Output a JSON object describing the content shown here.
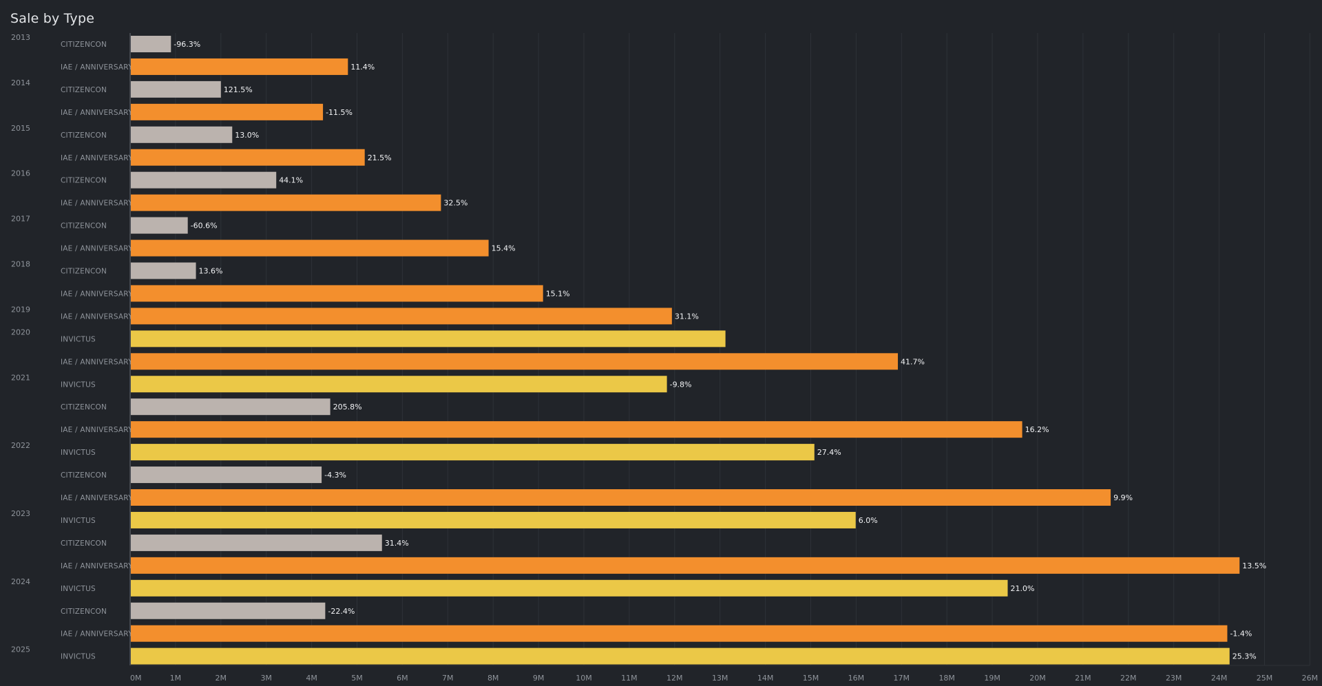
{
  "page": {
    "title": "Sale by Type"
  },
  "colors": {
    "background": "#212429",
    "CITIZENCON": "#bbb3ae",
    "IAE / ANNIVERSARY": "#f38f2d",
    "INVICTUS": "#ebc847"
  },
  "chart_data": {
    "type": "bar",
    "orientation": "horizontal",
    "title": "Sale by Type",
    "xlabel": "",
    "ylabel": "",
    "xlim": [
      0,
      26000000
    ],
    "x_ticks": [
      "0M",
      "1M",
      "2M",
      "3M",
      "4M",
      "5M",
      "6M",
      "7M",
      "8M",
      "9M",
      "10M",
      "11M",
      "12M",
      "13M",
      "14M",
      "15M",
      "16M",
      "17M",
      "18M",
      "19M",
      "20M",
      "21M",
      "22M",
      "23M",
      "24M",
      "25M",
      "26M"
    ],
    "grid": "vertical",
    "rows": [
      {
        "year": "2013",
        "type": "CITIZENCON",
        "value": 900000,
        "label": "-96.3%"
      },
      {
        "year": "",
        "type": "IAE / ANNIVERSARY",
        "value": 4800000,
        "label": "11.4%"
      },
      {
        "year": "2014",
        "type": "CITIZENCON",
        "value": 2000000,
        "label": "121.5%"
      },
      {
        "year": "",
        "type": "IAE / ANNIVERSARY",
        "value": 4250000,
        "label": "-11.5%"
      },
      {
        "year": "2015",
        "type": "CITIZENCON",
        "value": 2250000,
        "label": "13.0%"
      },
      {
        "year": "",
        "type": "IAE / ANNIVERSARY",
        "value": 5170000,
        "label": "21.5%"
      },
      {
        "year": "2016",
        "type": "CITIZENCON",
        "value": 3220000,
        "label": "44.1%"
      },
      {
        "year": "",
        "type": "IAE / ANNIVERSARY",
        "value": 6850000,
        "label": "32.5%"
      },
      {
        "year": "2017",
        "type": "CITIZENCON",
        "value": 1270000,
        "label": "-60.6%"
      },
      {
        "year": "",
        "type": "IAE / ANNIVERSARY",
        "value": 7900000,
        "label": "15.4%"
      },
      {
        "year": "2018",
        "type": "CITIZENCON",
        "value": 1450000,
        "label": "13.6%"
      },
      {
        "year": "",
        "type": "IAE / ANNIVERSARY",
        "value": 9100000,
        "label": "15.1%"
      },
      {
        "year": "2019",
        "type": "IAE / ANNIVERSARY",
        "value": 11940000,
        "label": "31.1%"
      },
      {
        "year": "2020",
        "type": "INVICTUS",
        "value": 13120000,
        "label": ""
      },
      {
        "year": "",
        "type": "IAE / ANNIVERSARY",
        "value": 16920000,
        "label": "41.7%"
      },
      {
        "year": "2021",
        "type": "INVICTUS",
        "value": 11830000,
        "label": "-9.8%"
      },
      {
        "year": "",
        "type": "CITIZENCON",
        "value": 4410000,
        "label": "205.8%"
      },
      {
        "year": "",
        "type": "IAE / ANNIVERSARY",
        "value": 19660000,
        "label": "16.2%"
      },
      {
        "year": "2022",
        "type": "INVICTUS",
        "value": 15080000,
        "label": "27.4%"
      },
      {
        "year": "",
        "type": "CITIZENCON",
        "value": 4220000,
        "label": "-4.3%"
      },
      {
        "year": "",
        "type": "IAE / ANNIVERSARY",
        "value": 21610000,
        "label": "9.9%"
      },
      {
        "year": "2023",
        "type": "INVICTUS",
        "value": 15990000,
        "label": "6.0%"
      },
      {
        "year": "",
        "type": "CITIZENCON",
        "value": 5550000,
        "label": "31.4%"
      },
      {
        "year": "",
        "type": "IAE / ANNIVERSARY",
        "value": 24450000,
        "label": "13.5%"
      },
      {
        "year": "2024",
        "type": "INVICTUS",
        "value": 19340000,
        "label": "21.0%"
      },
      {
        "year": "",
        "type": "CITIZENCON",
        "value": 4300000,
        "label": "-22.4%"
      },
      {
        "year": "",
        "type": "IAE / ANNIVERSARY",
        "value": 24180000,
        "label": "-1.4%"
      },
      {
        "year": "2025",
        "type": "INVICTUS",
        "value": 24230000,
        "label": "25.3%"
      }
    ]
  }
}
